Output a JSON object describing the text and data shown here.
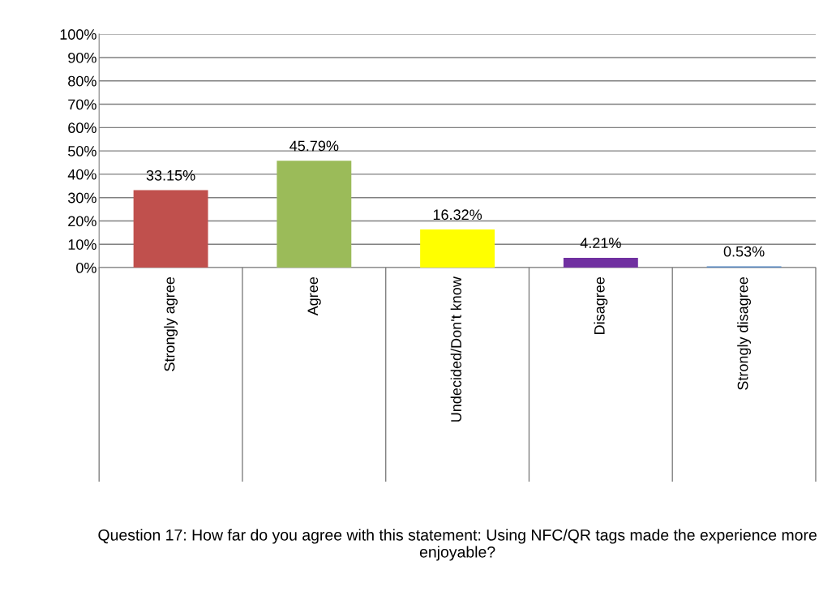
{
  "chart_data": {
    "type": "bar",
    "annotations": [
      "Question 17: How far do you agree with this statement: Using NFC/QR tags made the experience more enjoyable?"
    ],
    "categories": [
      "Strongly agree",
      "Agree",
      "Undecided/Don't know",
      "Disagree",
      "Strongly disagree"
    ],
    "values": [
      33.15,
      45.79,
      16.32,
      4.21,
      0.53
    ],
    "colors": [
      "#c0504d",
      "#9bbb59",
      "#ffff00",
      "#7030a0",
      "#4f81bd"
    ],
    "value_labels": [
      "33.15%",
      "45.79%",
      "16.32%",
      "4.21%",
      "0.53%"
    ],
    "ylim": [
      0,
      100
    ],
    "yticks": [
      {
        "value": 0,
        "label": "0%"
      },
      {
        "value": 10,
        "label": "10%"
      },
      {
        "value": 20,
        "label": "20%"
      },
      {
        "value": 30,
        "label": "30%"
      },
      {
        "value": 40,
        "label": "40%"
      },
      {
        "value": 50,
        "label": "50%"
      },
      {
        "value": 60,
        "label": "60%"
      },
      {
        "value": 70,
        "label": "70%"
      },
      {
        "value": 80,
        "label": "80%"
      },
      {
        "value": 90,
        "label": "90%"
      },
      {
        "value": 100,
        "label": "100%"
      }
    ],
    "grid": "y",
    "legend": false
  }
}
